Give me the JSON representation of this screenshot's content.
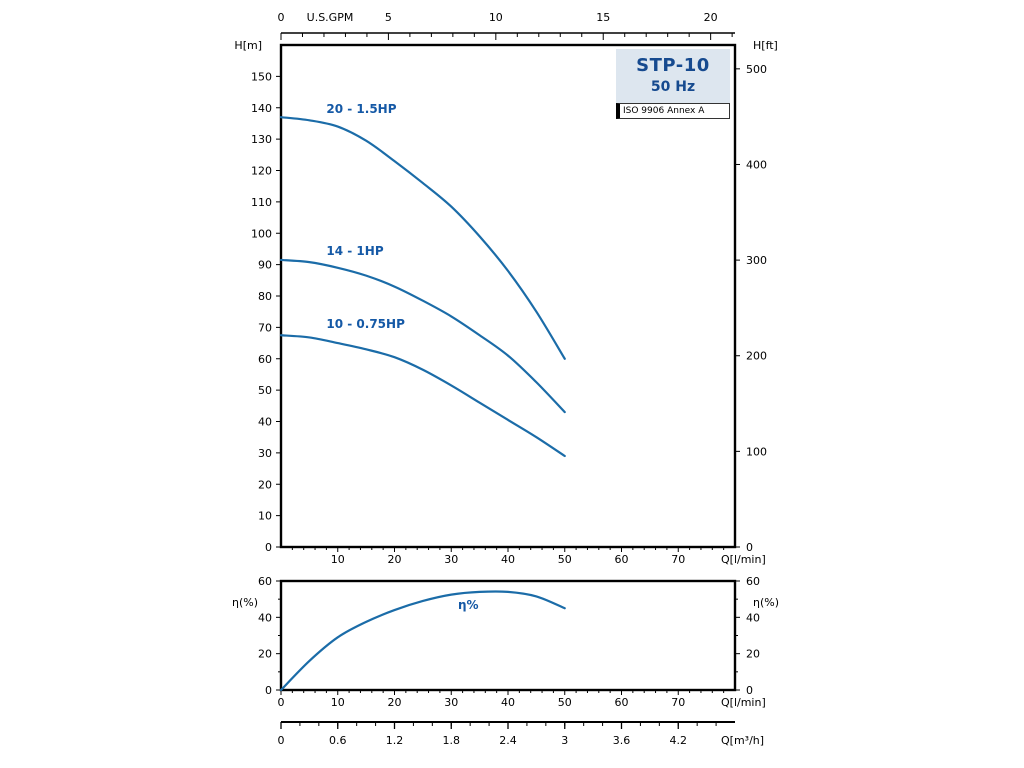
{
  "title_box": {
    "model": "STP-10",
    "frequency": "50 Hz",
    "standard": "ISO 9906 Annex A"
  },
  "colors": {
    "curve": "#1b6ca8",
    "curve_label": "#1559a6",
    "axis": "#000000"
  },
  "head_chart": {
    "left_axis": {
      "label": "H[m]",
      "ticks": [
        0,
        10,
        20,
        30,
        40,
        50,
        60,
        70,
        80,
        90,
        100,
        110,
        120,
        130,
        140,
        150
      ]
    },
    "right_axis": {
      "label": "H[ft]",
      "ticks": [
        0,
        100,
        200,
        300,
        400,
        500
      ]
    },
    "top_axis": {
      "label": "U.S.GPM",
      "ticks": [
        0,
        5,
        10,
        15,
        20
      ]
    },
    "bottom_axis": {
      "label": "Q[l/min]",
      "ticks": [
        10,
        20,
        30,
        40,
        50,
        60,
        70
      ]
    }
  },
  "eff_chart": {
    "left_axis": {
      "label": "η(%)",
      "ticks": [
        0,
        20,
        40,
        60
      ]
    },
    "right_axis": {
      "label": "η(%)",
      "ticks": [
        0,
        20,
        40,
        60
      ]
    },
    "bottom_axis": {
      "label": "Q[l/min]",
      "ticks": [
        0,
        10,
        20,
        30,
        40,
        50,
        60,
        70
      ]
    }
  },
  "m3h_axis": {
    "label": "Q[m³/h]",
    "ticks": [
      0,
      0.6,
      1.2,
      1.8,
      2.4,
      3,
      3.6,
      4.2
    ]
  },
  "chart_data": [
    {
      "type": "line",
      "title": "STP-10 50 Hz head curves (ISO 9906 Annex A)",
      "xlabel": "Q[l/min]",
      "ylabel": "H[m]",
      "y2label": "H[ft]",
      "x2label": "U.S.GPM",
      "xlim": [
        0,
        80
      ],
      "ylim": [
        0,
        160
      ],
      "grid": false,
      "x": [
        0,
        5,
        10,
        15,
        20,
        25,
        30,
        35,
        40,
        45,
        50
      ],
      "series": [
        {
          "name": "20 - 1.5HP",
          "values": [
            137,
            136,
            134,
            129.5,
            123,
            116,
            108.5,
            99,
            88,
            75,
            60
          ]
        },
        {
          "name": "14 - 1HP",
          "values": [
            91.5,
            90.8,
            89,
            86.5,
            83,
            78.5,
            73.5,
            67.5,
            61,
            52.5,
            43
          ]
        },
        {
          "name": "10 - 0.75HP",
          "values": [
            67.5,
            66.8,
            65,
            63,
            60.5,
            56.5,
            51.5,
            46,
            40.5,
            35,
            29
          ]
        }
      ]
    },
    {
      "type": "line",
      "title": "Efficiency curve",
      "xlabel": "Q[l/min]",
      "ylabel": "η(%)",
      "xlim": [
        0,
        80
      ],
      "ylim": [
        0,
        60
      ],
      "grid": false,
      "x": [
        0,
        5,
        10,
        15,
        20,
        25,
        30,
        35,
        40,
        45,
        50
      ],
      "series": [
        {
          "name": "η%",
          "values": [
            0,
            16,
            29,
            37.5,
            44,
            49,
            52.5,
            54,
            54,
            51.5,
            45
          ]
        }
      ]
    }
  ]
}
